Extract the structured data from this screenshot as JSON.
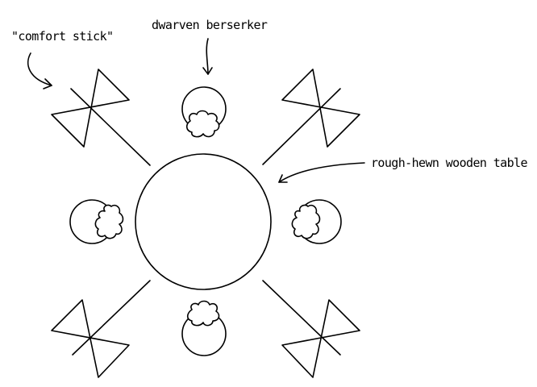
{
  "labels": {
    "comfort_stick": "\"comfort stick\"",
    "dwarven_berserker": "dwarven berserker",
    "table": "rough-hewn wooden table"
  },
  "colors": {
    "ink": "#000000",
    "background": "#ffffff"
  }
}
